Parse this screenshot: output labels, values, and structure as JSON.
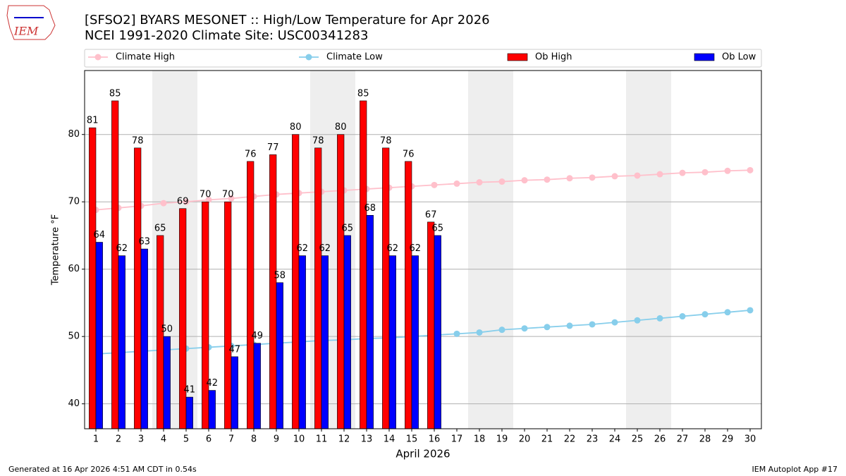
{
  "logo_text": "IEM",
  "chart_data": {
    "type": "bar",
    "title": "[SFSO2] BYARS MESONET :: High/Low Temperature for Apr 2026",
    "subtitle": "NCEI 1991-2020 Climate Site: USC00341283",
    "x_label": "April 2026",
    "y_label": "Temperature °F",
    "x": [
      1,
      2,
      3,
      4,
      5,
      6,
      7,
      8,
      9,
      10,
      11,
      12,
      13,
      14,
      15,
      16,
      17,
      18,
      19,
      20,
      21,
      22,
      23,
      24,
      25,
      26,
      27,
      28,
      29,
      30
    ],
    "xlim": [
      0.5,
      30.5
    ],
    "xticks": [
      1,
      2,
      3,
      4,
      5,
      6,
      7,
      8,
      9,
      10,
      11,
      12,
      13,
      14,
      15,
      16,
      17,
      18,
      19,
      20,
      21,
      22,
      23,
      24,
      25,
      26,
      27,
      28,
      29,
      30
    ],
    "ylim": [
      36.3,
      89.5
    ],
    "yticks": [
      40,
      50,
      60,
      70,
      80
    ],
    "grid": true,
    "shaded": [
      [
        3.5,
        5.5
      ],
      [
        10.5,
        12.5
      ],
      [
        17.5,
        19.5
      ],
      [
        24.5,
        26.5
      ]
    ],
    "shade_color": "#eeeeee",
    "series": [
      {
        "name": "Climate High",
        "kind": "line",
        "color": "#ffc0cb",
        "values": [
          68.8,
          69.1,
          69.4,
          69.8,
          70.0,
          70.3,
          70.5,
          70.8,
          71.1,
          71.3,
          71.5,
          71.7,
          71.9,
          72.1,
          72.3,
          72.5,
          72.7,
          72.9,
          73.0,
          73.2,
          73.3,
          73.5,
          73.6,
          73.8,
          73.9,
          74.1,
          74.3,
          74.4,
          74.6,
          74.7
        ]
      },
      {
        "name": "Climate Low",
        "kind": "line",
        "color": "#87ceeb",
        "values": [
          47.4,
          47.6,
          47.8,
          48.0,
          48.2,
          48.4,
          48.6,
          48.8,
          49.0,
          49.2,
          49.4,
          49.5,
          49.7,
          49.8,
          50.0,
          50.2,
          50.4,
          50.6,
          51.0,
          51.2,
          51.4,
          51.6,
          51.8,
          52.1,
          52.4,
          52.7,
          53.0,
          53.3,
          53.6,
          53.9
        ]
      },
      {
        "name": "Ob High",
        "kind": "bar",
        "color": "#ff0000",
        "offset": -0.15,
        "values": [
          81,
          85,
          78,
          65,
          69,
          70,
          70,
          76,
          77,
          80,
          78,
          80,
          85,
          78,
          76,
          67,
          null,
          null,
          null,
          null,
          null,
          null,
          null,
          null,
          null,
          null,
          null,
          null,
          null,
          null
        ]
      },
      {
        "name": "Ob Low",
        "kind": "bar",
        "color": "#0000ff",
        "offset": 0.15,
        "values": [
          64,
          62,
          63,
          50,
          41,
          42,
          47,
          49,
          58,
          62,
          62,
          65,
          68,
          62,
          62,
          65,
          null,
          null,
          null,
          null,
          null,
          null,
          null,
          null,
          null,
          null,
          null,
          null,
          null,
          null
        ]
      }
    ],
    "footer_left": "Generated at 16 Apr 2026 4:51 AM CDT in 0.54s",
    "footer_right": "IEM Autoplot App #17"
  }
}
